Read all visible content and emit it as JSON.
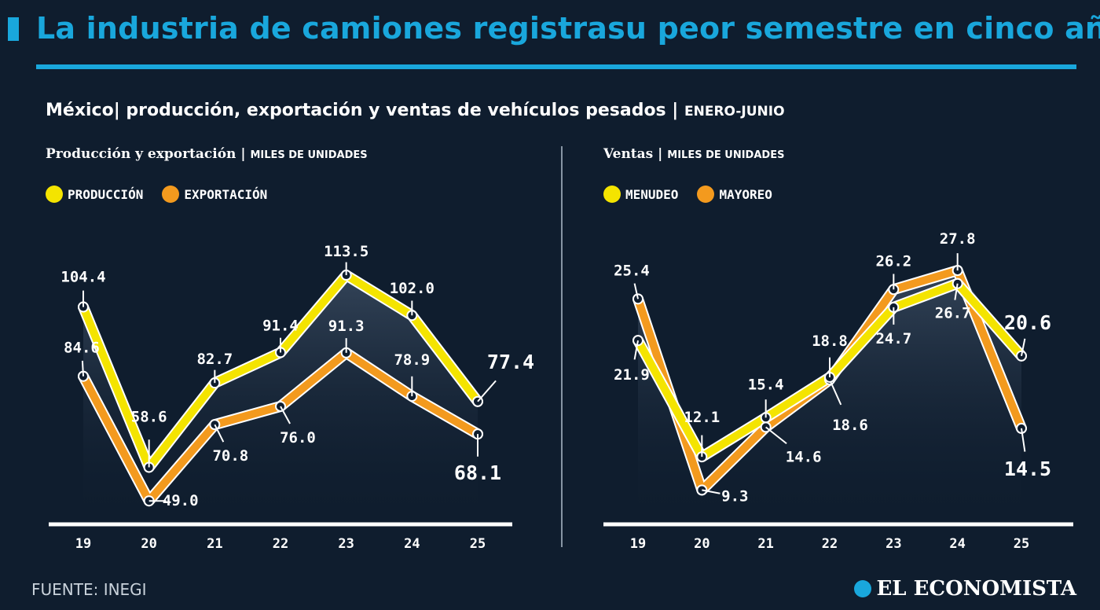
{
  "title": "La industria de camiones registrasu peor semestre en cinco años",
  "subtitle_main": "México| producción, exportación y ventas de vehículos pesados | ",
  "subtitle_period": "ENERO-JUNIO",
  "left_panel": {
    "label": "Producción y exportación | ",
    "unit": "MILES DE UNIDADES"
  },
  "right_panel": {
    "label": "Ventas | ",
    "unit": "MILES DE UNIDADES"
  },
  "footer": "FUENTE: INEGI",
  "brand": "EL ECONOMISTA",
  "colors": {
    "yellow": "#f4e400",
    "orange": "#f39a1e",
    "accent": "#19a7dc",
    "background": "#0f1d2e"
  },
  "chart_data": [
    {
      "type": "line",
      "categories": [
        "19",
        "20",
        "21",
        "22",
        "23",
        "24",
        "25"
      ],
      "ylim": [
        45,
        118
      ],
      "legend_placement": "top-left",
      "series": [
        {
          "name": "PRODUCCIÓN",
          "color": "#f4e400",
          "values": [
            104.4,
            58.6,
            82.7,
            91.4,
            113.5,
            102.0,
            77.4
          ],
          "labels": [
            "104.4",
            "58.6",
            "82.7",
            "91.4",
            "113.5",
            "102.0",
            "77.4"
          ]
        },
        {
          "name": "EXPORTACIÓN",
          "color": "#f39a1e",
          "values": [
            84.6,
            49.0,
            70.8,
            76.0,
            91.3,
            78.9,
            68.1
          ],
          "labels": [
            "84.6",
            "49.0",
            "70.8",
            "76.0",
            "91.3",
            "78.9",
            "68.1"
          ]
        }
      ]
    },
    {
      "type": "line",
      "categories": [
        "19",
        "20",
        "21",
        "22",
        "23",
        "24",
        "25"
      ],
      "ylim": [
        8,
        29
      ],
      "legend_placement": "top-left",
      "series": [
        {
          "name": "MENUDEO",
          "color": "#f4e400",
          "values": [
            21.9,
            12.1,
            15.4,
            18.8,
            24.7,
            26.7,
            20.6
          ],
          "labels": [
            "21.9",
            "12.1",
            "15.4",
            "18.8",
            "24.7",
            "26.7",
            "20.6"
          ]
        },
        {
          "name": "MAYOREO",
          "color": "#f39a1e",
          "values": [
            25.4,
            9.3,
            14.6,
            18.6,
            26.2,
            27.8,
            14.5
          ],
          "labels": [
            "25.4",
            "9.3",
            "14.6",
            "18.6",
            "26.2",
            "27.8",
            "14.5"
          ]
        }
      ]
    }
  ]
}
